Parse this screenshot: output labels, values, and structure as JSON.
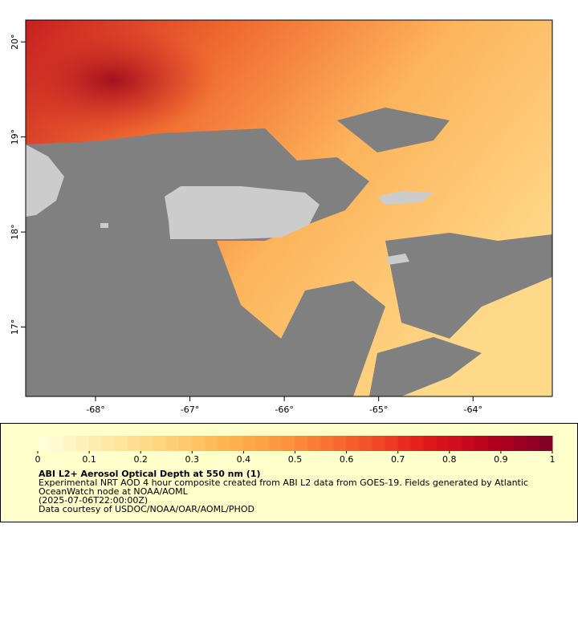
{
  "map": {
    "xlim": [
      -68.74,
      -63.16
    ],
    "ylim": [
      16.27,
      20.23
    ],
    "xticks": [
      {
        "value": -68,
        "label": "-68°"
      },
      {
        "value": -67,
        "label": "-67°"
      },
      {
        "value": -66,
        "label": "-66°"
      },
      {
        "value": -65,
        "label": "-65°"
      },
      {
        "value": -64,
        "label": "-64°"
      }
    ],
    "yticks": [
      {
        "value": 17,
        "label": "17°"
      },
      {
        "value": 18,
        "label": "18°"
      },
      {
        "value": 19,
        "label": "19°"
      },
      {
        "value": 20,
        "label": "20°"
      }
    ]
  },
  "legend": {
    "colorbar": {
      "lim": [
        0,
        1
      ],
      "ticks": [
        0,
        0.1,
        0.2,
        0.3,
        0.4,
        0.5,
        0.6,
        0.7,
        0.8,
        0.9,
        1
      ],
      "colormap": [
        "#ffffe0",
        "#feeaa8",
        "#fed27a",
        "#feb24c",
        "#fd8d3c",
        "#f45a2a",
        "#e31a1c",
        "#b8001e",
        "#800026"
      ]
    },
    "title": "ABI L2+ Aerosol Optical Depth at 550 nm (1)",
    "lines": [
      "Experimental NRT AOD 4 hour composite created from ABI L2 data from GOES-19. Fields generated by Atlantic",
      "OceanWatch node at NOAA/AOML",
      "(2025-07-06T22:00:00Z)",
      "Data courtesy of USDOC/NOAA/OAR/AOML/PHOD"
    ]
  }
}
